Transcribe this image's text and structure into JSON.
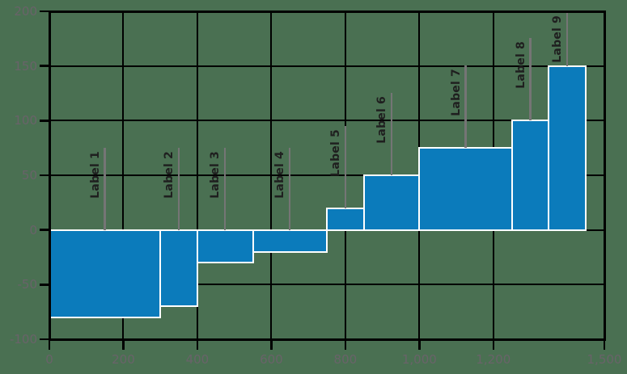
{
  "chart_data": {
    "type": "bar",
    "variant": "variable-width-bars",
    "title": "",
    "xlabel": "",
    "ylabel": "",
    "xlim": [
      0,
      1500
    ],
    "ylim": [
      -100,
      200
    ],
    "grid": true,
    "legend": null,
    "x_ticks": [
      0,
      200,
      400,
      600,
      800,
      1000,
      1200,
      1500
    ],
    "x_tick_labels": [
      "0",
      "200",
      "400",
      "600",
      "800",
      "1,000",
      "1,200",
      "1,500"
    ],
    "y_ticks": [
      -100,
      -50,
      0,
      50,
      100,
      150,
      200
    ],
    "y_tick_labels": [
      "-100",
      "-50",
      "0",
      "50",
      "100",
      "150",
      "200"
    ],
    "bars": [
      {
        "label": "Label 1",
        "x_start": 0,
        "x_end": 300,
        "value": -80
      },
      {
        "label": "Label 2",
        "x_start": 300,
        "x_end": 400,
        "value": -70
      },
      {
        "label": "Label 3",
        "x_start": 400,
        "x_end": 550,
        "value": -30
      },
      {
        "label": "Label 4",
        "x_start": 550,
        "x_end": 750,
        "value": -20
      },
      {
        "label": "Label 5",
        "x_start": 750,
        "x_end": 850,
        "value": 20
      },
      {
        "label": "Label 6",
        "x_start": 850,
        "x_end": 1000,
        "value": 50
      },
      {
        "label": "Label 7",
        "x_start": 1000,
        "x_end": 1250,
        "value": 75
      },
      {
        "label": "Label 8",
        "x_start": 1250,
        "x_end": 1350,
        "value": 100
      },
      {
        "label": "Label 9",
        "x_start": 1350,
        "x_end": 1450,
        "value": 150
      }
    ],
    "colors": {
      "background": "#4a7052",
      "bar_fill": "#0b7bbb",
      "bar_stroke": "#ffffff",
      "grid": "#000000",
      "frame": "#000000",
      "leader_line": "#757575",
      "label_text": "#1f1f1f",
      "tick_text": "#696369"
    }
  }
}
